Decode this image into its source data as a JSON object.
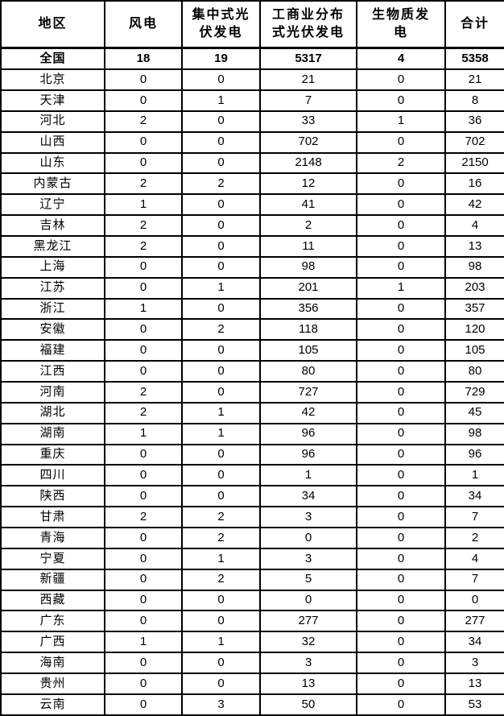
{
  "table": {
    "columns": [
      "地区",
      "风电",
      "集中式光伏发电",
      "工商业分布式光伏发电",
      "生物质发电",
      "合计"
    ],
    "national": {
      "region": "全国",
      "values": [
        18,
        19,
        5317,
        4,
        5358
      ]
    },
    "rows": [
      {
        "region": "北京",
        "values": [
          0,
          0,
          21,
          0,
          21
        ]
      },
      {
        "region": "天津",
        "values": [
          0,
          1,
          7,
          0,
          8
        ]
      },
      {
        "region": "河北",
        "values": [
          2,
          0,
          33,
          1,
          36
        ]
      },
      {
        "region": "山西",
        "values": [
          0,
          0,
          702,
          0,
          702
        ]
      },
      {
        "region": "山东",
        "values": [
          0,
          0,
          2148,
          2,
          2150
        ]
      },
      {
        "region": "内蒙古",
        "values": [
          2,
          2,
          12,
          0,
          16
        ]
      },
      {
        "region": "辽宁",
        "values": [
          1,
          0,
          41,
          0,
          42
        ]
      },
      {
        "region": "吉林",
        "values": [
          2,
          0,
          2,
          0,
          4
        ]
      },
      {
        "region": "黑龙江",
        "values": [
          2,
          0,
          11,
          0,
          13
        ]
      },
      {
        "region": "上海",
        "values": [
          0,
          0,
          98,
          0,
          98
        ]
      },
      {
        "region": "江苏",
        "values": [
          0,
          1,
          201,
          1,
          203
        ]
      },
      {
        "region": "浙江",
        "values": [
          1,
          0,
          356,
          0,
          357
        ]
      },
      {
        "region": "安徽",
        "values": [
          0,
          2,
          118,
          0,
          120
        ]
      },
      {
        "region": "福建",
        "values": [
          0,
          0,
          105,
          0,
          105
        ]
      },
      {
        "region": "江西",
        "values": [
          0,
          0,
          80,
          0,
          80
        ]
      },
      {
        "region": "河南",
        "values": [
          2,
          0,
          727,
          0,
          729
        ]
      },
      {
        "region": "湖北",
        "values": [
          2,
          1,
          42,
          0,
          45
        ]
      },
      {
        "region": "湖南",
        "values": [
          1,
          1,
          96,
          0,
          98
        ]
      },
      {
        "region": "重庆",
        "values": [
          0,
          0,
          96,
          0,
          96
        ]
      },
      {
        "region": "四川",
        "values": [
          0,
          0,
          1,
          0,
          1
        ]
      },
      {
        "region": "陕西",
        "values": [
          0,
          0,
          34,
          0,
          34
        ]
      },
      {
        "region": "甘肃",
        "values": [
          2,
          2,
          3,
          0,
          7
        ]
      },
      {
        "region": "青海",
        "values": [
          0,
          2,
          0,
          0,
          2
        ]
      },
      {
        "region": "宁夏",
        "values": [
          0,
          1,
          3,
          0,
          4
        ]
      },
      {
        "region": "新疆",
        "values": [
          0,
          2,
          5,
          0,
          7
        ]
      },
      {
        "region": "西藏",
        "values": [
          0,
          0,
          0,
          0,
          0
        ]
      },
      {
        "region": "广东",
        "values": [
          0,
          0,
          277,
          0,
          277
        ]
      },
      {
        "region": "广西",
        "values": [
          1,
          1,
          32,
          0,
          34
        ]
      },
      {
        "region": "海南",
        "values": [
          0,
          0,
          3,
          0,
          3
        ]
      },
      {
        "region": "贵州",
        "values": [
          0,
          0,
          13,
          0,
          13
        ]
      },
      {
        "region": "云南",
        "values": [
          0,
          3,
          50,
          0,
          53
        ]
      }
    ]
  }
}
